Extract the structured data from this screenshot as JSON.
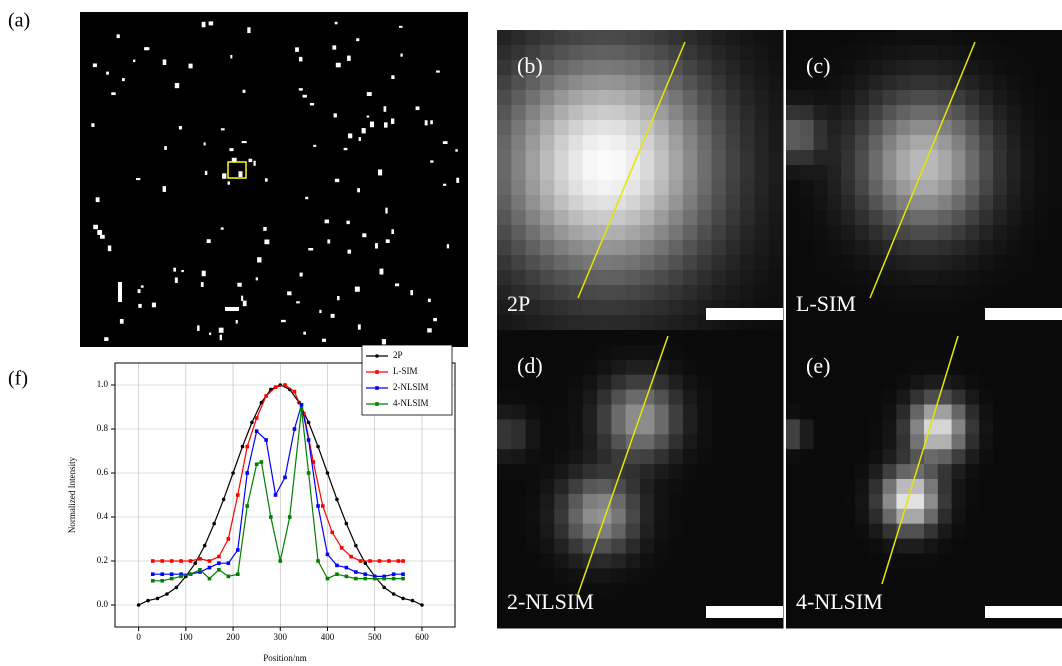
{
  "panel_a": {
    "label": "(a)"
  },
  "panel_f": {
    "label": "(f)"
  },
  "images": [
    {
      "label": "(b)",
      "caption": "2P"
    },
    {
      "label": "(c)",
      "caption": "L-SIM"
    },
    {
      "label": "(d)",
      "caption": "2-NLSIM"
    },
    {
      "label": "(e)",
      "caption": "4-NLSIM"
    }
  ],
  "chart_data": {
    "type": "line",
    "x_label": "Position/nm",
    "y_label": "Normalized Intensity",
    "xlim": [
      -50,
      670
    ],
    "ylim": [
      -0.1,
      1.1
    ],
    "xticks": [
      0,
      100,
      200,
      300,
      400,
      500,
      600
    ],
    "yticks": [
      {
        "value": 0,
        "label": "0.0"
      },
      0.2,
      0.4,
      0.6,
      0.8,
      {
        "value": 1,
        "label": "1.0"
      }
    ],
    "grid": true,
    "legend": "upper right",
    "series": [
      {
        "name": "2P",
        "color": "#000000",
        "marker": "circle",
        "x": [
          0,
          20,
          40,
          60,
          80,
          100,
          120,
          140,
          160,
          180,
          200,
          220,
          240,
          260,
          280,
          300,
          320,
          340,
          360,
          380,
          400,
          420,
          440,
          460,
          480,
          500,
          520,
          540,
          560,
          580,
          600
        ],
        "values": [
          0.0,
          0.02,
          0.03,
          0.05,
          0.08,
          0.13,
          0.19,
          0.27,
          0.37,
          0.48,
          0.6,
          0.72,
          0.83,
          0.92,
          0.98,
          1.0,
          0.98,
          0.92,
          0.83,
          0.72,
          0.6,
          0.48,
          0.37,
          0.27,
          0.19,
          0.13,
          0.08,
          0.05,
          0.03,
          0.02,
          0.0
        ]
      },
      {
        "name": "L-SIM",
        "color": "#ff0000",
        "marker": "square",
        "x": [
          30,
          50,
          70,
          90,
          110,
          130,
          150,
          170,
          190,
          210,
          230,
          250,
          270,
          290,
          310,
          330,
          350,
          370,
          390,
          410,
          430,
          450,
          470,
          490,
          510,
          530,
          550,
          560
        ],
        "values": [
          0.2,
          0.2,
          0.2,
          0.2,
          0.2,
          0.21,
          0.2,
          0.22,
          0.3,
          0.5,
          0.72,
          0.85,
          0.95,
          0.99,
          1.0,
          0.97,
          0.87,
          0.65,
          0.45,
          0.33,
          0.26,
          0.22,
          0.2,
          0.2,
          0.2,
          0.2,
          0.2,
          0.2
        ]
      },
      {
        "name": "2-NLSIM",
        "color": "#0000ff",
        "marker": "square",
        "x": [
          30,
          50,
          70,
          90,
          110,
          130,
          150,
          170,
          190,
          210,
          230,
          250,
          270,
          290,
          310,
          330,
          345,
          360,
          380,
          400,
          420,
          440,
          460,
          480,
          500,
          520,
          540,
          560
        ],
        "values": [
          0.14,
          0.14,
          0.14,
          0.14,
          0.14,
          0.15,
          0.17,
          0.19,
          0.19,
          0.25,
          0.6,
          0.79,
          0.75,
          0.5,
          0.58,
          0.8,
          0.91,
          0.75,
          0.45,
          0.23,
          0.18,
          0.17,
          0.15,
          0.14,
          0.13,
          0.13,
          0.14,
          0.14
        ]
      },
      {
        "name": "4-NLSIM",
        "color": "#008000",
        "marker": "square",
        "x": [
          30,
          50,
          70,
          90,
          110,
          130,
          150,
          170,
          190,
          210,
          230,
          250,
          260,
          280,
          300,
          320,
          345,
          360,
          380,
          400,
          420,
          440,
          460,
          480,
          500,
          520,
          540,
          560
        ],
        "values": [
          0.11,
          0.11,
          0.12,
          0.13,
          0.14,
          0.16,
          0.12,
          0.16,
          0.13,
          0.14,
          0.45,
          0.64,
          0.65,
          0.4,
          0.2,
          0.4,
          0.89,
          0.6,
          0.2,
          0.12,
          0.14,
          0.13,
          0.12,
          0.12,
          0.12,
          0.12,
          0.12,
          0.12
        ]
      }
    ]
  }
}
